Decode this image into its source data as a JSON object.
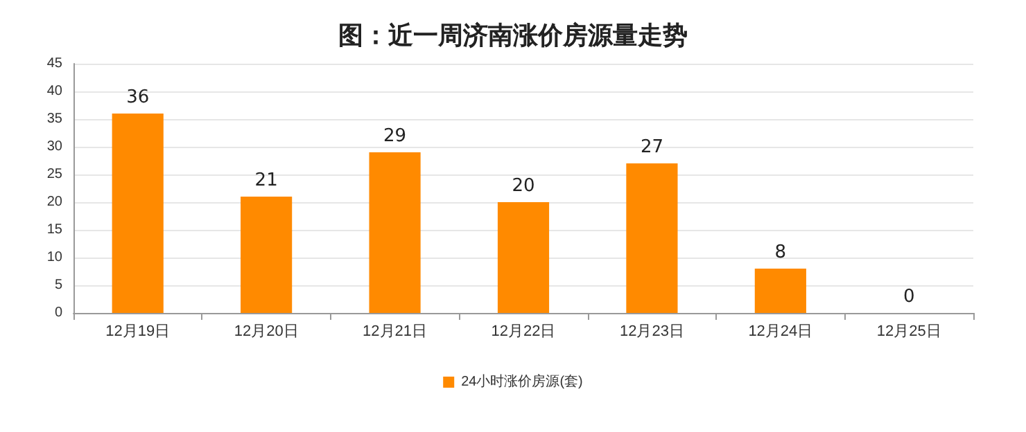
{
  "chart_data": {
    "type": "bar",
    "title": "图：近一周济南涨价房源量走势",
    "categories": [
      "12月19日",
      "12月20日",
      "12月21日",
      "12月22日",
      "12月23日",
      "12月24日",
      "12月25日"
    ],
    "series": [
      {
        "name": "24小时涨价房源(套)",
        "color": "#ff8a00",
        "values": [
          36,
          21,
          29,
          20,
          27,
          8,
          0
        ]
      }
    ],
    "ylim": [
      0,
      45
    ],
    "yticks": [
      0,
      5,
      10,
      15,
      20,
      25,
      30,
      35,
      40,
      45
    ],
    "grid": "y",
    "legend": "bottom",
    "data_labels": true
  }
}
